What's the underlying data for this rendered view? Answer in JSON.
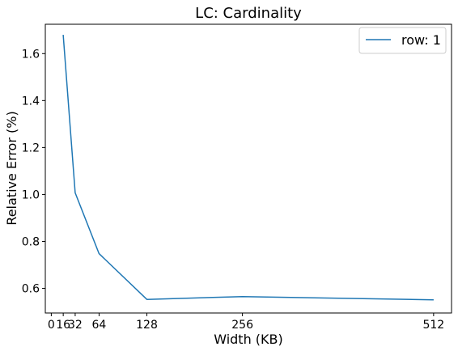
{
  "chart_data": {
    "type": "line",
    "title": "LC: Cardinality",
    "xlabel": "Width (KB)",
    "ylabel": "Relative Error (%)",
    "xlim": [
      -8,
      536
    ],
    "ylim": [
      0.495,
      1.725
    ],
    "xticks": [
      0,
      16,
      32,
      64,
      128,
      256,
      512
    ],
    "xtick_labels": [
      "0",
      "16",
      "32",
      "64",
      "128",
      "256",
      "512"
    ],
    "yticks": [
      0.6,
      0.8,
      1.0,
      1.2,
      1.4,
      1.6
    ],
    "ytick_labels": [
      "0.6",
      "0.8",
      "1.0",
      "1.2",
      "1.4",
      "1.6"
    ],
    "grid": false,
    "legend_position": "upper right",
    "series": [
      {
        "name": "row: 1",
        "color": "#1f77b4",
        "x": [
          16,
          32,
          64,
          128,
          256,
          512
        ],
        "y": [
          1.68,
          1.007,
          0.748,
          0.553,
          0.565,
          0.551
        ]
      }
    ]
  }
}
